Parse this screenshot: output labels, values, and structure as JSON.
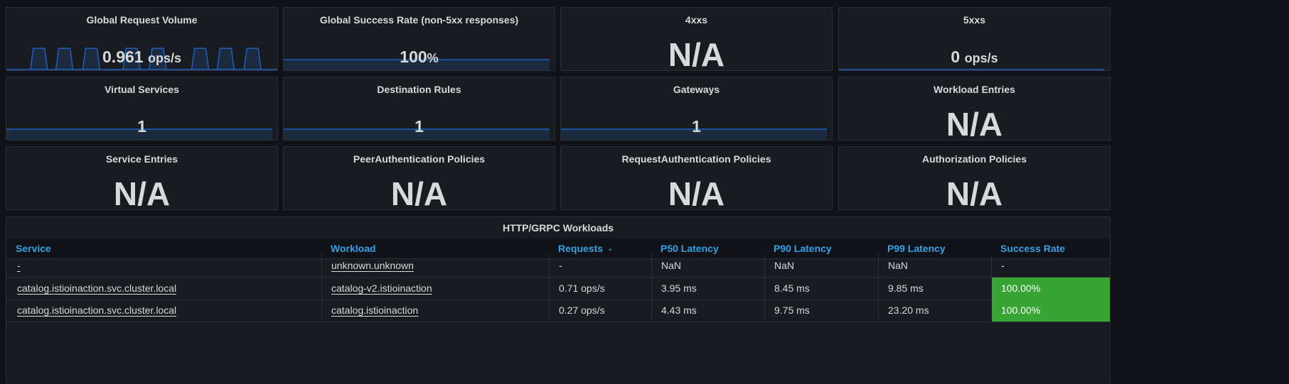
{
  "stats": [
    {
      "title": "Global Request Volume",
      "value": "0.961",
      "unit": "ops/s"
    },
    {
      "title": "Global Success Rate (non-5xx responses)",
      "value": "100",
      "unit": "%"
    },
    {
      "title": "4xxs",
      "value": "N/A",
      "unit": ""
    },
    {
      "title": "5xxs",
      "value": "0",
      "unit": "ops/s"
    },
    {
      "title": "Virtual Services",
      "value": "1",
      "unit": ""
    },
    {
      "title": "Destination Rules",
      "value": "1",
      "unit": ""
    },
    {
      "title": "Gateways",
      "value": "1",
      "unit": ""
    },
    {
      "title": "Workload Entries",
      "value": "N/A",
      "unit": ""
    },
    {
      "title": "Service Entries",
      "value": "N/A",
      "unit": ""
    },
    {
      "title": "PeerAuthentication Policies",
      "value": "N/A",
      "unit": ""
    },
    {
      "title": "RequestAuthentication Policies",
      "value": "N/A",
      "unit": ""
    },
    {
      "title": "Authorization Policies",
      "value": "N/A",
      "unit": ""
    }
  ],
  "workloads": {
    "title": "HTTP/GRPC Workloads",
    "columns": [
      "Service",
      "Workload",
      "Requests",
      "P50 Latency",
      "P90 Latency",
      "P99 Latency",
      "Success Rate"
    ],
    "rows": [
      [
        "-",
        "unknown.unknown",
        "-",
        "NaN",
        "NaN",
        "NaN",
        "-"
      ],
      [
        "catalog.istioinaction.svc.cluster.local",
        "catalog-v2.istioinaction",
        "0.71 ops/s",
        "3.95 ms",
        "8.45 ms",
        "9.85 ms",
        "100.00%"
      ],
      [
        "catalog.istioinaction.svc.cluster.local",
        "catalog.istioinaction",
        "0.27 ops/s",
        "4.43 ms",
        "9.75 ms",
        "23.20 ms",
        "100.00%"
      ]
    ]
  },
  "colors": {
    "accent": "#33a2e5",
    "success": "#37a434",
    "spark_line": "#1f60c4",
    "spark_fill": "#1d2b40"
  }
}
